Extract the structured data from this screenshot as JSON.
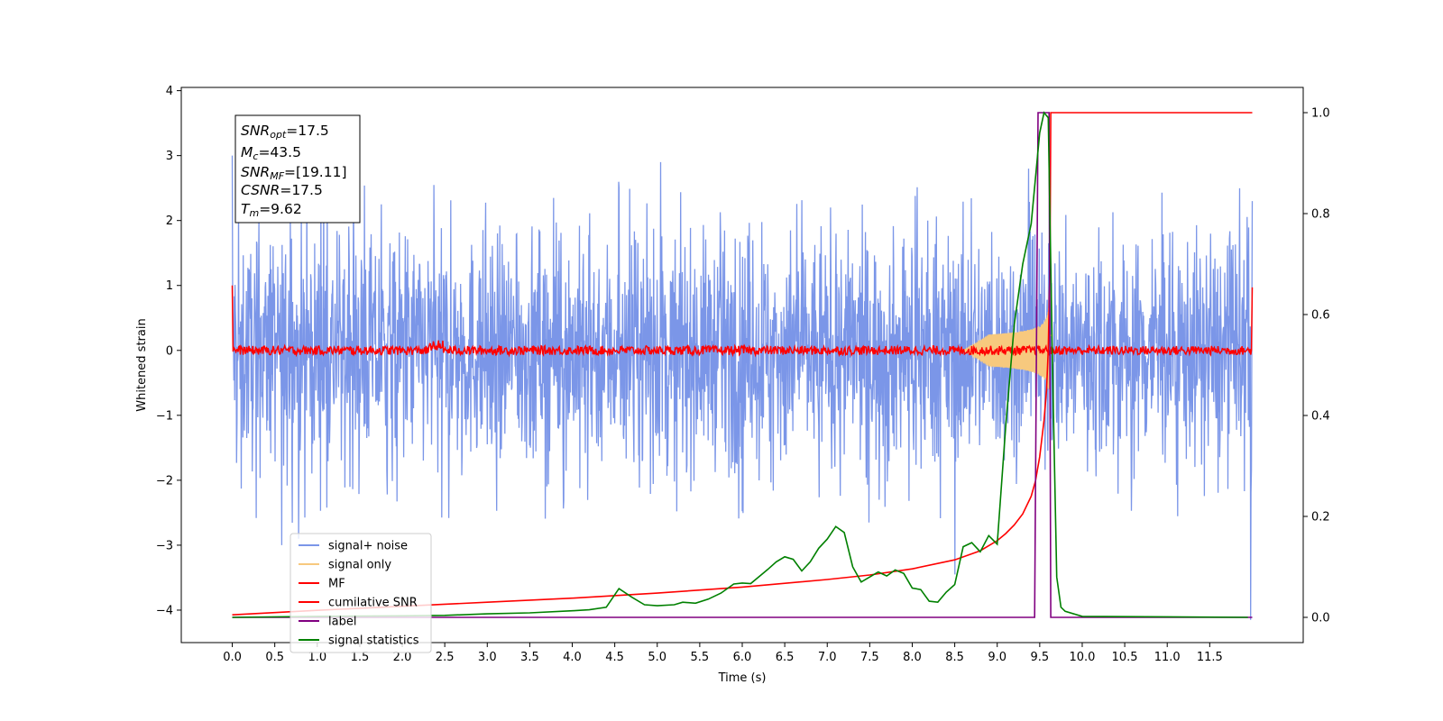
{
  "chart_data": {
    "type": "line",
    "xlabel": "Time (s)",
    "ylabel": "Whitened strain",
    "xlim": [
      -0.6,
      12.6
    ],
    "ylim_left": [
      -4.5,
      4.05
    ],
    "ylim_right": [
      -0.05,
      1.05
    ],
    "xticks": [
      0.0,
      0.5,
      1.0,
      1.5,
      2.0,
      2.5,
      3.0,
      3.5,
      4.0,
      4.5,
      5.0,
      5.5,
      6.0,
      6.5,
      7.0,
      7.5,
      8.0,
      8.5,
      9.0,
      9.5,
      10.0,
      10.5,
      11.0,
      11.5
    ],
    "xtick_labels": [
      "0.0",
      "0.5",
      "1.0",
      "1.5",
      "2.0",
      "2.5",
      "3.0",
      "3.5",
      "4.0",
      "4.5",
      "5.0",
      "5.5",
      "6.0",
      "6.5",
      "7.0",
      "7.5",
      "8.0",
      "8.5",
      "9.0",
      "9.5",
      "10.0",
      "10.5",
      "11.0",
      "11.5"
    ],
    "yticks_left": [
      4,
      3,
      2,
      1,
      0,
      -1,
      -2,
      -3,
      -4
    ],
    "ytick_labels_left": [
      "4",
      "3",
      "2",
      "1",
      "0",
      "−1",
      "−2",
      "−3",
      "−4"
    ],
    "yticks_right": [
      1.0,
      0.8,
      0.6,
      0.4,
      0.2,
      0.0
    ],
    "ytick_labels_right": [
      "1.0",
      "0.8",
      "0.6",
      "0.4",
      "0.2",
      "0.0"
    ],
    "grid": false,
    "legend_position": "lower-left",
    "annotation": {
      "lines": [
        {
          "name": "SNR",
          "sub": "opt",
          "value": "=17.5"
        },
        {
          "name": "M",
          "sub": "c",
          "value": "=43.5"
        },
        {
          "name": "SNR",
          "sub": "MF",
          "value": "=[19.11]"
        },
        {
          "name": "CSNR",
          "sub": "",
          "value": "=17.5"
        },
        {
          "name": "T",
          "sub": "m",
          "value": "=9.62"
        }
      ]
    },
    "series": [
      {
        "name": "signal+ noise",
        "color": "#7b96e8",
        "axis": "left",
        "x_range": [
          0.0,
          12.0
        ],
        "noise_amplitude_typical": 1.7,
        "extreme_points": [
          [
            0.0,
            3.0
          ],
          [
            0.78,
            -2.9
          ],
          [
            0.58,
            -3.0
          ],
          [
            5.04,
            2.9
          ],
          [
            8.5,
            -3.45
          ],
          [
            11.98,
            -4.15
          ],
          [
            9.37,
            2.8
          ],
          [
            12.0,
            2.3
          ]
        ]
      },
      {
        "name": "signal only",
        "color": "#f7c97e",
        "axis": "left",
        "chirp": {
          "t_merge": 9.62,
          "start": 8.6,
          "peak_amplitude": 0.9
        }
      },
      {
        "name": "MF",
        "color": "#ff0000",
        "axis": "left",
        "x_range": [
          0.0,
          12.0
        ],
        "baseline": 0.0,
        "noise_amplitude": 0.07,
        "edge_values": [
          1.0,
          0.97
        ],
        "bumps": [
          [
            2.4,
            0.2
          ]
        ]
      },
      {
        "name": "cumilative SNR",
        "color": "#ff0000",
        "axis": "right",
        "x": [
          0.0,
          1.0,
          2.0,
          3.0,
          4.0,
          5.0,
          6.0,
          7.0,
          7.5,
          8.0,
          8.5,
          8.8,
          9.0,
          9.1,
          9.2,
          9.3,
          9.4,
          9.45,
          9.5,
          9.55,
          9.58,
          9.6,
          9.62,
          9.63,
          12.0
        ],
        "values": [
          0.005,
          0.014,
          0.022,
          0.03,
          0.038,
          0.048,
          0.06,
          0.075,
          0.084,
          0.096,
          0.114,
          0.132,
          0.152,
          0.166,
          0.183,
          0.205,
          0.24,
          0.27,
          0.318,
          0.39,
          0.45,
          0.53,
          0.7,
          1.0,
          1.0
        ]
      },
      {
        "name": "label",
        "color": "#800080",
        "axis": "right",
        "x": [
          0.0,
          9.44,
          9.48,
          9.61,
          9.63,
          12.0
        ],
        "values": [
          0.0,
          0.0,
          1.0,
          1.0,
          0.0,
          0.0
        ]
      },
      {
        "name": "signal statistics",
        "color": "#008000",
        "axis": "right",
        "x": [
          0.0,
          1.0,
          2.0,
          2.5,
          3.0,
          3.5,
          4.0,
          4.2,
          4.4,
          4.55,
          4.7,
          4.85,
          5.0,
          5.2,
          5.3,
          5.45,
          5.6,
          5.75,
          5.9,
          6.0,
          6.1,
          6.3,
          6.4,
          6.5,
          6.6,
          6.7,
          6.8,
          6.9,
          7.0,
          7.1,
          7.2,
          7.3,
          7.4,
          7.5,
          7.6,
          7.7,
          7.8,
          7.9,
          8.0,
          8.1,
          8.2,
          8.3,
          8.4,
          8.5,
          8.6,
          8.7,
          8.8,
          8.9,
          9.0,
          9.1,
          9.2,
          9.3,
          9.4,
          9.5,
          9.55,
          9.6,
          9.65,
          9.7,
          9.75,
          9.8,
          10.0,
          11.0,
          11.95
        ],
        "values": [
          0.0,
          0.002,
          0.003,
          0.004,
          0.007,
          0.009,
          0.013,
          0.015,
          0.02,
          0.057,
          0.04,
          0.025,
          0.023,
          0.025,
          0.03,
          0.028,
          0.036,
          0.048,
          0.066,
          0.068,
          0.067,
          0.095,
          0.11,
          0.12,
          0.115,
          0.092,
          0.11,
          0.137,
          0.155,
          0.18,
          0.168,
          0.1,
          0.07,
          0.08,
          0.09,
          0.082,
          0.094,
          0.087,
          0.058,
          0.055,
          0.032,
          0.03,
          0.05,
          0.065,
          0.14,
          0.148,
          0.13,
          0.162,
          0.145,
          0.38,
          0.58,
          0.7,
          0.78,
          0.96,
          1.0,
          0.99,
          0.5,
          0.08,
          0.02,
          0.012,
          0.002,
          0.001,
          0.0
        ]
      }
    ]
  }
}
